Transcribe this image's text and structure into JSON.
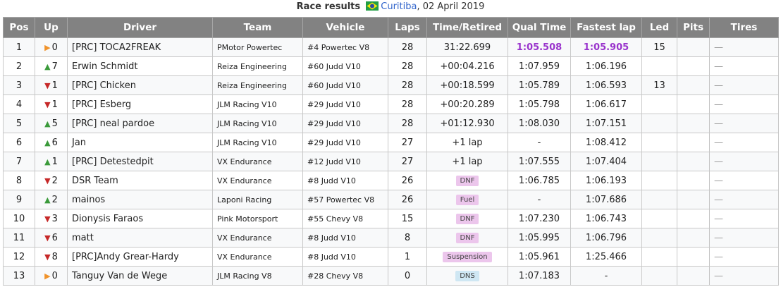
{
  "caption": {
    "prefix": "Race results",
    "flag_icon": "brazil-flag-icon",
    "track": "Curitiba",
    "date": ", 02 April 2019"
  },
  "columns": [
    "Pos",
    "Up",
    "Driver",
    "Team",
    "Vehicle",
    "Laps",
    "Time/Retired",
    "Qual Time",
    "Fastest lap",
    "Led",
    "Pits",
    "Tires"
  ],
  "colors": {
    "up": "#3a9a3a",
    "down": "#c62828",
    "same": "#f0932b",
    "best": "#9933cc",
    "header": "#828282"
  },
  "rows": [
    {
      "pos": "1",
      "dir": "same",
      "up": "0",
      "driver": "[PRC] TOCA2FREAK",
      "team": "PMotor Powertec",
      "vehicle": "#4 Powertec V8",
      "laps": "28",
      "time": "31:22.699",
      "qual": "1:05.508",
      "qual_best": true,
      "fastest": "1:05.905",
      "fastest_best": true,
      "led": "15",
      "pits": "",
      "tires": "—"
    },
    {
      "pos": "2",
      "dir": "up",
      "up": "7",
      "driver": "Erwin Schmidt",
      "team": "Reiza Engineering",
      "vehicle": "#60 Judd V10",
      "laps": "28",
      "time": "+00:04.216",
      "qual": "1:07.959",
      "fastest": "1:06.196",
      "led": "",
      "pits": "",
      "tires": "—"
    },
    {
      "pos": "3",
      "dir": "down",
      "up": "1",
      "driver": "[PRC] Chicken",
      "team": "Reiza Engineering",
      "vehicle": "#60 Judd V10",
      "laps": "28",
      "time": "+00:18.599",
      "qual": "1:05.789",
      "fastest": "1:06.593",
      "led": "13",
      "pits": "",
      "tires": "—"
    },
    {
      "pos": "4",
      "dir": "down",
      "up": "1",
      "driver": "[PRC] Esberg",
      "team": "JLM Racing V10",
      "vehicle": "#29 Judd V10",
      "laps": "28",
      "time": "+00:20.289",
      "qual": "1:05.798",
      "fastest": "1:06.617",
      "led": "",
      "pits": "",
      "tires": "—"
    },
    {
      "pos": "5",
      "dir": "up",
      "up": "5",
      "driver": "[PRC] neal pardoe",
      "team": "JLM Racing V10",
      "vehicle": "#29 Judd V10",
      "laps": "28",
      "time": "+01:12.930",
      "qual": "1:08.030",
      "fastest": "1:07.151",
      "led": "",
      "pits": "",
      "tires": "—"
    },
    {
      "pos": "6",
      "dir": "up",
      "up": "6",
      "driver": "Jan",
      "team": "JLM Racing V10",
      "vehicle": "#29 Judd V10",
      "laps": "27",
      "time": "+1 lap",
      "qual": "-",
      "fastest": "1:08.412",
      "led": "",
      "pits": "",
      "tires": "—"
    },
    {
      "pos": "7",
      "dir": "up",
      "up": "1",
      "driver": "[PRC] Detestedpit",
      "team": "VX Endurance",
      "vehicle": "#12 Judd V10",
      "laps": "27",
      "time": "+1 lap",
      "qual": "1:07.555",
      "fastest": "1:07.404",
      "led": "",
      "pits": "",
      "tires": "—"
    },
    {
      "pos": "8",
      "dir": "down",
      "up": "2",
      "driver": "DSR Team",
      "team": "VX Endurance",
      "vehicle": "#8 Judd V10",
      "laps": "26",
      "badge": "DNF",
      "badge_color": "pink",
      "qual": "1:06.785",
      "fastest": "1:06.193",
      "led": "",
      "pits": "",
      "tires": "—"
    },
    {
      "pos": "9",
      "dir": "up",
      "up": "2",
      "driver": "mainos",
      "team": "Laponi Racing",
      "vehicle": "#57 Powertec V8",
      "laps": "26",
      "badge": "Fuel",
      "badge_color": "pink",
      "qual": "-",
      "fastest": "1:07.686",
      "led": "",
      "pits": "",
      "tires": "—"
    },
    {
      "pos": "10",
      "dir": "down",
      "up": "3",
      "driver": "Dionysis Faraos",
      "team": "Pink Motorsport",
      "vehicle": "#55 Chevy V8",
      "laps": "15",
      "badge": "DNF",
      "badge_color": "pink",
      "qual": "1:07.230",
      "fastest": "1:06.743",
      "led": "",
      "pits": "",
      "tires": "—"
    },
    {
      "pos": "11",
      "dir": "down",
      "up": "6",
      "driver": "matt",
      "team": "VX Endurance",
      "vehicle": "#8 Judd V10",
      "laps": "8",
      "badge": "DNF",
      "badge_color": "pink",
      "qual": "1:05.995",
      "fastest": "1:06.796",
      "led": "",
      "pits": "",
      "tires": "—"
    },
    {
      "pos": "12",
      "dir": "down",
      "up": "8",
      "driver": "[PRC]Andy Grear-Hardy",
      "team": "VX Endurance",
      "vehicle": "#8 Judd V10",
      "laps": "1",
      "badge": "Suspension",
      "badge_color": "pink",
      "qual": "1:05.961",
      "fastest": "1:25.466",
      "led": "",
      "pits": "",
      "tires": "—"
    },
    {
      "pos": "13",
      "dir": "same",
      "up": "0",
      "driver": "Tanguy Van de Wege",
      "team": "JLM Racing V8",
      "vehicle": "#28 Chevy V8",
      "laps": "0",
      "badge": "DNS",
      "badge_color": "blue",
      "qual": "1:07.183",
      "fastest": "-",
      "led": "",
      "pits": "",
      "tires": "—"
    }
  ]
}
